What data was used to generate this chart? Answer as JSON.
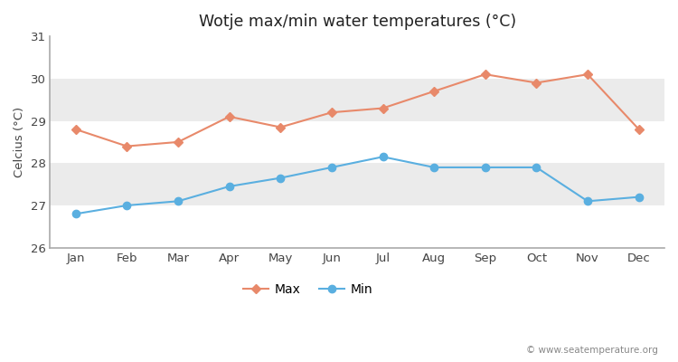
{
  "title": "Wotje max/min water temperatures (°C)",
  "ylabel": "Celcius (°C)",
  "months": [
    "Jan",
    "Feb",
    "Mar",
    "Apr",
    "May",
    "Jun",
    "Jul",
    "Aug",
    "Sep",
    "Oct",
    "Nov",
    "Dec"
  ],
  "max_temps": [
    28.8,
    28.4,
    28.5,
    29.1,
    28.85,
    29.2,
    29.3,
    29.7,
    30.1,
    29.9,
    30.1,
    28.8
  ],
  "min_temps": [
    26.8,
    27.0,
    27.1,
    27.45,
    27.65,
    27.9,
    28.15,
    27.9,
    27.9,
    27.9,
    27.1,
    27.2
  ],
  "max_color": "#e8896a",
  "min_color": "#5aafe0",
  "fig_bg_color": "#ffffff",
  "band_colors": [
    "#ffffff",
    "#ebebeb"
  ],
  "ylim": [
    26,
    31
  ],
  "yticks": [
    26,
    27,
    28,
    29,
    30,
    31
  ],
  "watermark": "© www.seatemperature.org",
  "legend_max": "Max",
  "legend_min": "Min",
  "bottom_spine_color": "#aaaaaa"
}
